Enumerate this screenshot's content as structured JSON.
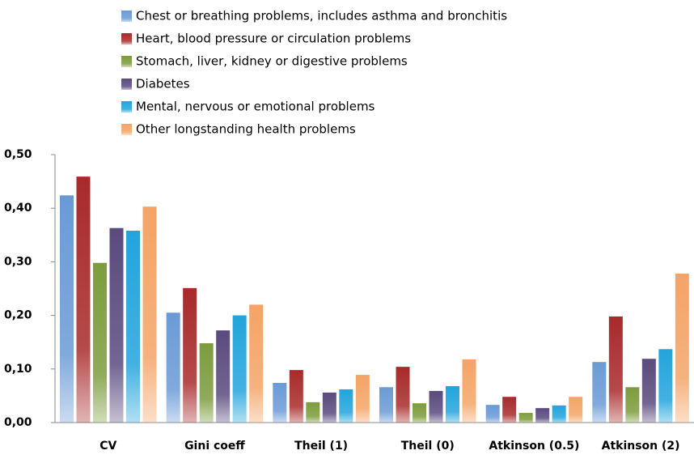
{
  "chart_data": {
    "type": "bar",
    "categories": [
      "CV",
      "Gini coeff",
      "Theil (1)",
      "Theil (0)",
      "Atkinson (0.5)",
      "Atkinson (2)"
    ],
    "series": [
      {
        "name": "Chest or breathing problems, includes asthma and bronchitis",
        "color": "#6a9ad6",
        "values": [
          0.424,
          0.205,
          0.074,
          0.066,
          0.033,
          0.113
        ]
      },
      {
        "name": "Heart, blood pressure or circulation problems",
        "color": "#a82a2a",
        "values": [
          0.459,
          0.251,
          0.098,
          0.104,
          0.048,
          0.198
        ]
      },
      {
        "name": "Stomach, liver, kidney or digestive problems",
        "color": "#7c9c3c",
        "values": [
          0.298,
          0.148,
          0.038,
          0.036,
          0.018,
          0.066
        ]
      },
      {
        "name": "Diabetes",
        "color": "#5a4a7e",
        "values": [
          0.363,
          0.172,
          0.056,
          0.059,
          0.027,
          0.119
        ]
      },
      {
        "name": "Mental, nervous or emotional problems",
        "color": "#22a4dc",
        "values": [
          0.358,
          0.2,
          0.062,
          0.068,
          0.032,
          0.137
        ]
      },
      {
        "name": "Other longstanding health problems",
        "color": "#f4a466",
        "values": [
          0.403,
          0.22,
          0.089,
          0.118,
          0.048,
          0.278
        ]
      }
    ],
    "ylim": [
      0,
      0.5
    ],
    "yticks": [
      {
        "value": 0,
        "label": "0,00"
      },
      {
        "value": 0.1,
        "label": "0,10"
      },
      {
        "value": 0.2,
        "label": "0,20"
      },
      {
        "value": 0.3,
        "label": "0,30"
      },
      {
        "value": 0.4,
        "label": "0,40"
      },
      {
        "value": 0.5,
        "label": "0,50"
      }
    ]
  }
}
